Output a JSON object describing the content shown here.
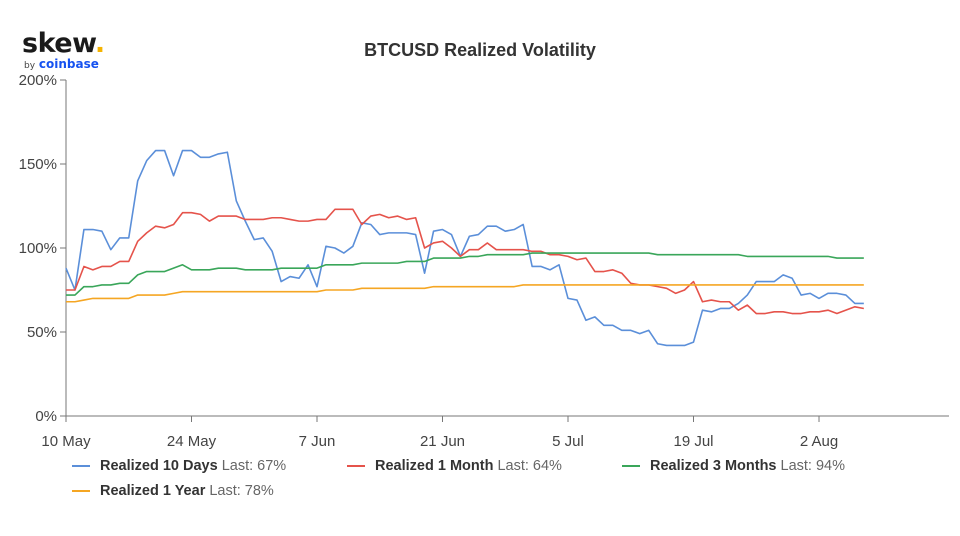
{
  "brand": {
    "name": "skew",
    "dot": ".",
    "by": "by",
    "partner": "coinbase"
  },
  "chart_data": {
    "type": "line",
    "title": "BTCUSD Realized Volatility",
    "xlabel": "",
    "ylabel": "",
    "ylim": [
      0,
      200
    ],
    "yticks": [
      0,
      50,
      100,
      150,
      200
    ],
    "ytick_labels": [
      "0%",
      "50%",
      "100%",
      "150%",
      "200%"
    ],
    "xlim": [
      0,
      98.5
    ],
    "xticks": [
      0,
      14,
      28,
      42,
      56,
      70,
      84
    ],
    "xtick_labels": [
      "10 May",
      "24 May",
      "7 Jun",
      "21 Jun",
      "5 Jul",
      "19 Jul",
      "2 Aug"
    ],
    "legend_position": "bottom",
    "series": [
      {
        "name": "Realized 10 Days",
        "last_label": "Last: 67%",
        "color": "#5b8fd9",
        "values": [
          88,
          75,
          111,
          111,
          110,
          99,
          106,
          106,
          140,
          152,
          158,
          158,
          143,
          158,
          158,
          154,
          154,
          156,
          157,
          128,
          116,
          105,
          106,
          98,
          80,
          83,
          82,
          90,
          77,
          101,
          100,
          97,
          101,
          115,
          114,
          108,
          109,
          109,
          109,
          108,
          85,
          110,
          111,
          108,
          95,
          107,
          108,
          113,
          113,
          110,
          111,
          114,
          89,
          89,
          87,
          90,
          70,
          69,
          57,
          59,
          54,
          54,
          51,
          51,
          49,
          51,
          43,
          42,
          42,
          42,
          44,
          63,
          62,
          64,
          64,
          67,
          72,
          80,
          80,
          80,
          84,
          82,
          72,
          73,
          70,
          73,
          73,
          72,
          67,
          67
        ]
      },
      {
        "name": "Realized 1 Month",
        "last_label": "Last: 64%",
        "color": "#e5534b",
        "values": [
          75,
          75,
          89,
          87,
          89,
          89,
          92,
          92,
          104,
          109,
          113,
          112,
          114,
          121,
          121,
          120,
          116,
          119,
          119,
          119,
          117,
          117,
          117,
          118,
          118,
          117,
          116,
          116,
          117,
          117,
          123,
          123,
          123,
          114,
          119,
          120,
          118,
          119,
          117,
          118,
          100,
          103,
          104,
          100,
          95,
          99,
          99,
          103,
          99,
          99,
          99,
          99,
          98,
          98,
          96,
          96,
          95,
          93,
          94,
          86,
          86,
          87,
          85,
          79,
          78,
          78,
          77,
          76,
          73,
          75,
          80,
          68,
          69,
          68,
          68,
          63,
          66,
          61,
          61,
          62,
          62,
          61,
          61,
          62,
          62,
          63,
          61,
          63,
          65,
          64
        ]
      },
      {
        "name": "Realized 3 Months",
        "last_label": "Last: 94%",
        "color": "#3aa65a",
        "values": [
          72,
          72,
          77,
          77,
          78,
          78,
          79,
          79,
          84,
          86,
          86,
          86,
          88,
          90,
          87,
          87,
          87,
          88,
          88,
          88,
          87,
          87,
          87,
          87,
          88,
          88,
          88,
          88,
          88,
          90,
          90,
          90,
          90,
          91,
          91,
          91,
          91,
          91,
          92,
          92,
          92,
          94,
          94,
          94,
          94,
          95,
          95,
          96,
          96,
          96,
          96,
          96,
          97,
          97,
          97,
          97,
          97,
          97,
          97,
          97,
          97,
          97,
          97,
          97,
          97,
          97,
          96,
          96,
          96,
          96,
          96,
          96,
          96,
          96,
          96,
          96,
          95,
          95,
          95,
          95,
          95,
          95,
          95,
          95,
          95,
          95,
          94,
          94,
          94,
          94
        ]
      },
      {
        "name": "Realized 1 Year",
        "last_label": "Last: 78%",
        "color": "#f5a623",
        "values": [
          68,
          68,
          69,
          70,
          70,
          70,
          70,
          70,
          72,
          72,
          72,
          72,
          73,
          74,
          74,
          74,
          74,
          74,
          74,
          74,
          74,
          74,
          74,
          74,
          74,
          74,
          74,
          74,
          74,
          75,
          75,
          75,
          75,
          76,
          76,
          76,
          76,
          76,
          76,
          76,
          76,
          77,
          77,
          77,
          77,
          77,
          77,
          77,
          77,
          77,
          77,
          78,
          78,
          78,
          78,
          78,
          78,
          78,
          78,
          78,
          78,
          78,
          78,
          78,
          78,
          78,
          78,
          78,
          78,
          78,
          78,
          78,
          78,
          78,
          78,
          78,
          78,
          78,
          78,
          78,
          78,
          78,
          78,
          78,
          78,
          78,
          78,
          78,
          78,
          78
        ]
      }
    ]
  }
}
